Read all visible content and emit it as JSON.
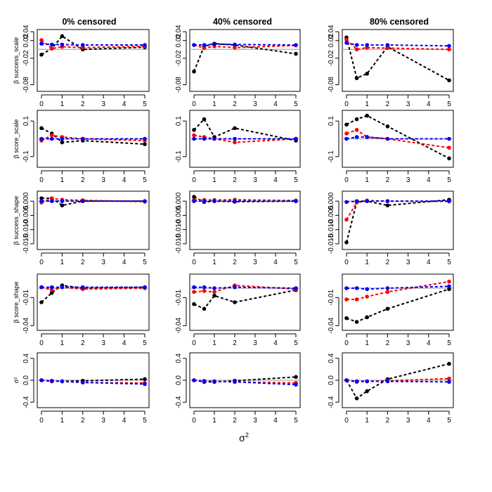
{
  "figure": {
    "column_titles": [
      "0% censored",
      "40% censored",
      "80% censored"
    ],
    "x_axis_label": "σ",
    "x_axis_label_sup": "2",
    "x_ticks": [
      0,
      1,
      2,
      3,
      4,
      5
    ]
  },
  "chart_data": {
    "type": "line",
    "layout": "small-multiples 5 rows x 3 columns",
    "x": [
      0,
      0.5,
      1,
      2,
      5
    ],
    "xlim": [
      0,
      5
    ],
    "series_colors": {
      "black": "#000000",
      "red": "#ff0000",
      "blue": "#0000ff",
      "reference": "#a9a9a9"
    },
    "rows": [
      {
        "ylabel": "β success_scale",
        "ylabel_greek": "β",
        "ylabel_rest": " success_scale",
        "ylim": [
          -0.095,
          0.045
        ],
        "yticks": [
          0.04,
          0.02,
          -0.02,
          -0.08
        ],
        "ytick_labels": [
          "0.04",
          "0.02",
          "-0.02",
          "-0.08"
        ],
        "panels": [
          {
            "black": [
              -0.012,
              0.002,
              0.03,
              0.0,
              0.005
            ],
            "red": [
              0.021,
              0.002,
              0.006,
              0.004,
              0.007
            ],
            "blue": [
              0.013,
              0.011,
              0.011,
              0.01,
              0.01
            ]
          },
          {
            "black": [
              -0.05,
              0.007,
              0.013,
              0.01,
              -0.01
            ],
            "red": [
              0.01,
              0.003,
              0.007,
              0.004,
              0.009
            ],
            "blue": [
              0.01,
              0.01,
              0.012,
              0.011,
              0.01
            ]
          },
          {
            "black": [
              0.027,
              -0.065,
              -0.055,
              0.006,
              -0.07
            ],
            "red": [
              0.022,
              0.0,
              0.004,
              0.003,
              0.0
            ],
            "blue": [
              0.015,
              0.01,
              0.01,
              0.01,
              0.008
            ]
          }
        ]
      },
      {
        "ylabel": "β score_scale",
        "ylabel_greek": "β",
        "ylabel_rest": " score_scale",
        "ylim": [
          -0.16,
          0.16
        ],
        "yticks": [
          0.1,
          -0.1
        ],
        "ytick_labels": [
          "0.1",
          "-0.1"
        ],
        "panels": [
          {
            "black": [
              0.06,
              0.03,
              -0.02,
              -0.01,
              -0.03
            ],
            "red": [
              -0.01,
              0.02,
              0.01,
              0.0,
              -0.01
            ],
            "blue": [
              0.0,
              0.0,
              0.0,
              0.0,
              0.0
            ]
          },
          {
            "black": [
              0.05,
              0.11,
              0.01,
              0.06,
              -0.01
            ],
            "red": [
              0.02,
              0.01,
              0.0,
              -0.02,
              0.0
            ],
            "blue": [
              0.0,
              0.0,
              0.0,
              0.0,
              0.0
            ]
          },
          {
            "black": [
              0.08,
              0.11,
              0.13,
              0.07,
              -0.11
            ],
            "red": [
              0.03,
              0.05,
              0.01,
              0.0,
              -0.05
            ],
            "blue": [
              0.0,
              0.01,
              0.01,
              0.0,
              0.0
            ]
          }
        ]
      },
      {
        "ylabel": "β success_shape",
        "ylabel_greek": "β",
        "ylabel_rest": " success_shape",
        "ylim": [
          -0.017,
          0.0035
        ],
        "yticks": [
          0.0,
          -0.005,
          -0.01,
          -0.015
        ],
        "ytick_labels": [
          "0.000",
          "-0.005",
          "-0.010",
          "-0.015"
        ],
        "panels": [
          {
            "black": [
              0.001,
              0.001,
              -0.0015,
              0.0,
              0.0
            ],
            "red": [
              -0.0005,
              0.001,
              0.0005,
              0.0003,
              -0.0002
            ],
            "blue": [
              0.0,
              0.0,
              0.0,
              0.0,
              0.0
            ]
          },
          {
            "black": [
              0.0015,
              -0.0003,
              0.0,
              -0.0002,
              0.0
            ],
            "red": [
              0.0004,
              0.0004,
              0.0004,
              0.0005,
              0.0002
            ],
            "blue": [
              0.0,
              0.0,
              0.0,
              0.0,
              0.0
            ]
          },
          {
            "black": [
              -0.0145,
              -0.0003,
              0.0,
              -0.0015,
              0.0005
            ],
            "red": [
              -0.0065,
              -0.0005,
              0.0002,
              0.0,
              -0.0001
            ],
            "blue": [
              -0.0003,
              0.0,
              0.0,
              0.0,
              0.0
            ]
          }
        ]
      },
      {
        "ylabel": "β score_shape",
        "ylabel_greek": "β",
        "ylabel_rest": " score_shape",
        "ylim": [
          -0.045,
          0.015
        ],
        "yticks": [
          -0.01,
          -0.04
        ],
        "ytick_labels": [
          "-0.01",
          "-0.04"
        ],
        "panels": [
          {
            "black": [
              -0.015,
              -0.005,
              0.003,
              0.0,
              0.001
            ],
            "red": [
              0.001,
              -0.002,
              0.001,
              -0.001,
              0.0
            ],
            "blue": [
              0.001,
              0.001,
              0.001,
              0.001,
              0.001
            ]
          },
          {
            "black": [
              -0.017,
              -0.022,
              -0.008,
              -0.015,
              -0.002
            ],
            "red": [
              -0.004,
              -0.003,
              -0.004,
              0.003,
              -0.001
            ],
            "blue": [
              0.001,
              0.001,
              0.0,
              0.001,
              0.0
            ]
          },
          {
            "black": [
              -0.032,
              -0.036,
              -0.031,
              -0.022,
              -0.001
            ],
            "red": [
              -0.012,
              -0.012,
              -0.009,
              -0.004,
              0.007
            ],
            "blue": [
              0.0,
              0.0,
              -0.001,
              0.0,
              0.002
            ]
          }
        ]
      },
      {
        "ylabel": "σ²",
        "ylabel_greek": "σ",
        "ylabel_rest": "²",
        "ylim": [
          -0.5,
          0.5
        ],
        "yticks": [
          0.4,
          0.0,
          -0.4
        ],
        "ytick_labels": [
          "0.4",
          "0.0",
          "-0.4"
        ],
        "panels": [
          {
            "black": [
              0.0,
              -0.02,
              -0.02,
              -0.01,
              0.02
            ],
            "red": [
              0.0,
              -0.02,
              -0.02,
              -0.04,
              -0.05
            ],
            "blue": [
              0.0,
              -0.01,
              -0.02,
              -0.04,
              -0.07
            ]
          },
          {
            "black": [
              0.0,
              -0.03,
              -0.03,
              -0.01,
              0.06
            ],
            "red": [
              0.0,
              -0.01,
              -0.02,
              -0.03,
              -0.05
            ],
            "blue": [
              0.0,
              -0.02,
              -0.02,
              -0.03,
              -0.08
            ]
          },
          {
            "black": [
              0.0,
              -0.33,
              -0.2,
              0.02,
              0.3
            ],
            "red": [
              0.0,
              -0.03,
              -0.02,
              -0.01,
              0.03
            ],
            "blue": [
              0.0,
              -0.02,
              -0.02,
              -0.02,
              -0.03
            ]
          }
        ]
      }
    ]
  }
}
